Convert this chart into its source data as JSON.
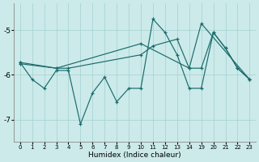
{
  "xlabel": "Humidex (Indice chaleur)",
  "bg_color": "#cceaea",
  "line_color": "#1a6b6b",
  "grid_color": "#aad4d4",
  "series1_x": [
    0,
    1,
    2,
    3,
    4,
    5,
    6,
    7,
    8,
    9,
    10,
    11,
    12,
    13,
    14,
    19,
    20,
    21,
    22,
    23
  ],
  "series1_y": [
    -5.72,
    -6.1,
    -6.3,
    -5.9,
    -5.9,
    -7.1,
    -6.4,
    -6.05,
    -6.6,
    -6.3,
    -6.3,
    -4.75,
    -5.05,
    -5.55,
    -6.3,
    -6.3,
    -5.05,
    -5.4,
    -5.85,
    -6.1
  ],
  "series2_x": [
    0,
    3,
    4,
    10,
    11,
    13,
    14,
    19,
    20,
    21,
    22,
    23
  ],
  "series2_y": [
    -5.72,
    -5.85,
    -5.85,
    -5.55,
    -5.35,
    -5.2,
    -5.85,
    -5.85,
    -5.05,
    -5.4,
    -5.85,
    -6.1
  ],
  "series3_x": [
    0,
    3,
    10,
    14,
    19,
    23
  ],
  "series3_y": [
    -5.75,
    -5.85,
    -5.3,
    -5.85,
    -4.85,
    -6.1
  ],
  "ylim": [
    -7.5,
    -4.4
  ],
  "xlim": [
    -0.5,
    23.5
  ],
  "yticks": [
    -7,
    -6,
    -5
  ],
  "xticks": [
    0,
    1,
    2,
    3,
    4,
    5,
    6,
    7,
    8,
    9,
    10,
    11,
    12,
    13,
    14,
    19,
    20,
    21,
    22,
    23
  ]
}
